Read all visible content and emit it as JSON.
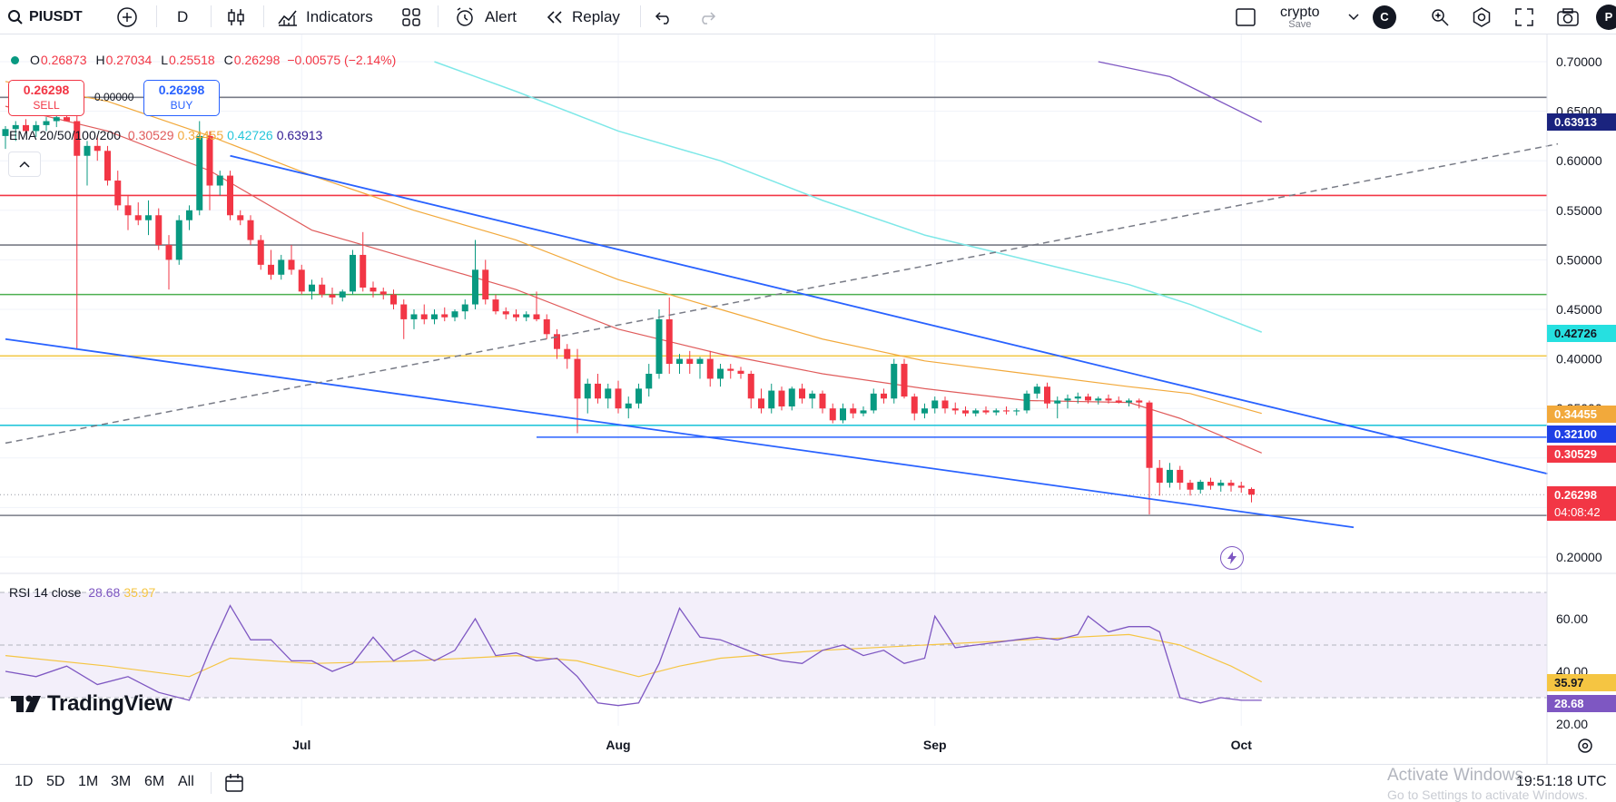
{
  "toolbar": {
    "symbol": "PIUSDT",
    "interval": "D",
    "indicators_label": "Indicators",
    "alert_label": "Alert",
    "replay_label": "Replay",
    "layout_name": "crypto",
    "layout_status": "Save",
    "avatar_letter": "C",
    "profile_letter": "P"
  },
  "legend": {
    "open_label": "O",
    "open": "0.26873",
    "high_label": "H",
    "high": "0.27034",
    "low_label": "L",
    "low": "0.25518",
    "close_label": "C",
    "close": "0.26298",
    "change": "−0.00575 (−2.14%)",
    "ema_label": "EMA 20/50/100/200",
    "ema20": "0.30529",
    "ema50": "0.34455",
    "ema100": "0.42726",
    "ema200": "0.63913",
    "rsi_label": "RSI 14 close",
    "rsi_value": "28.68",
    "rsi_ma": "35.97"
  },
  "trade": {
    "sell_price": "0.26298",
    "sell_label": "SELL",
    "spread": "0.00000",
    "buy_price": "0.26298",
    "buy_label": "BUY"
  },
  "price_tags": {
    "ema200": "0.63913",
    "ema100": "0.42726",
    "ema50": "0.34455",
    "level": "0.32100",
    "ema20": "0.30529",
    "last": "0.26298",
    "countdown": "04:08:42",
    "rsi_ma": "35.97",
    "rsi": "28.68"
  },
  "bottom": {
    "ranges": [
      "1D",
      "5D",
      "1M",
      "3M",
      "6M",
      "All"
    ],
    "clock": "19:51:18 UTC"
  },
  "watermark": {
    "line1": "Activate Windows",
    "line2": "Go to Settings to activate Windows."
  },
  "logo_text": "TradingView",
  "colors": {
    "up": "#089981",
    "down": "#f23645",
    "ema20": "#e05c5c",
    "ema50": "#f2a93b",
    "ema100": "#7ee8e8",
    "ema200": "#7e57c2",
    "trendline": "#2962ff",
    "rsi": "#7e57c2",
    "rsi_ma": "#f5c542"
  },
  "chart_data": {
    "type": "candlestick",
    "price_axis": {
      "min": 0.2,
      "max": 0.7,
      "ticks": [
        "0.70000",
        "0.65000",
        "0.60000",
        "0.55000",
        "0.50000",
        "0.45000",
        "0.40000",
        "0.35000",
        "0.20000"
      ]
    },
    "rsi_axis": {
      "ticks": [
        "60.00",
        "40.00",
        "20.00"
      ],
      "band": [
        30,
        70
      ],
      "mid": 50
    },
    "time_labels": [
      {
        "label": "Jul",
        "day": 29
      },
      {
        "label": "Aug",
        "day": 60
      },
      {
        "label": "Sep",
        "day": 91
      },
      {
        "label": "Oct",
        "day": 121
      }
    ],
    "ohlc": [
      [
        0.625,
        0.635,
        0.612,
        0.632
      ],
      [
        0.632,
        0.64,
        0.62,
        0.636
      ],
      [
        0.636,
        0.642,
        0.628,
        0.63
      ],
      [
        0.63,
        0.64,
        0.624,
        0.636
      ],
      [
        0.636,
        0.644,
        0.63,
        0.64
      ],
      [
        0.64,
        0.648,
        0.634,
        0.644
      ],
      [
        0.644,
        0.655,
        0.64,
        0.64
      ],
      [
        0.64,
        0.65,
        0.41,
        0.605
      ],
      [
        0.605,
        0.62,
        0.575,
        0.615
      ],
      [
        0.615,
        0.625,
        0.6,
        0.61
      ],
      [
        0.61,
        0.615,
        0.575,
        0.58
      ],
      [
        0.58,
        0.59,
        0.55,
        0.555
      ],
      [
        0.555,
        0.565,
        0.53,
        0.545
      ],
      [
        0.545,
        0.558,
        0.535,
        0.54
      ],
      [
        0.54,
        0.56,
        0.525,
        0.545
      ],
      [
        0.545,
        0.552,
        0.51,
        0.515
      ],
      [
        0.515,
        0.525,
        0.47,
        0.5
      ],
      [
        0.5,
        0.545,
        0.495,
        0.54
      ],
      [
        0.54,
        0.555,
        0.53,
        0.55
      ],
      [
        0.55,
        0.64,
        0.545,
        0.625
      ],
      [
        0.625,
        0.63,
        0.55,
        0.575
      ],
      [
        0.575,
        0.59,
        0.565,
        0.585
      ],
      [
        0.585,
        0.59,
        0.54,
        0.545
      ],
      [
        0.545,
        0.55,
        0.535,
        0.54
      ],
      [
        0.54,
        0.545,
        0.515,
        0.52
      ],
      [
        0.52,
        0.525,
        0.49,
        0.495
      ],
      [
        0.495,
        0.51,
        0.48,
        0.485
      ],
      [
        0.485,
        0.505,
        0.48,
        0.5
      ],
      [
        0.5,
        0.515,
        0.485,
        0.49
      ],
      [
        0.49,
        0.495,
        0.465,
        0.468
      ],
      [
        0.468,
        0.48,
        0.46,
        0.475
      ],
      [
        0.475,
        0.482,
        0.462,
        0.465
      ],
      [
        0.465,
        0.472,
        0.455,
        0.462
      ],
      [
        0.462,
        0.47,
        0.458,
        0.468
      ],
      [
        0.468,
        0.51,
        0.465,
        0.505
      ],
      [
        0.505,
        0.528,
        0.468,
        0.472
      ],
      [
        0.472,
        0.478,
        0.462,
        0.468
      ],
      [
        0.468,
        0.472,
        0.46,
        0.465
      ],
      [
        0.465,
        0.47,
        0.45,
        0.455
      ],
      [
        0.455,
        0.46,
        0.42,
        0.44
      ],
      [
        0.44,
        0.45,
        0.43,
        0.445
      ],
      [
        0.445,
        0.455,
        0.435,
        0.44
      ],
      [
        0.44,
        0.45,
        0.435,
        0.445
      ],
      [
        0.445,
        0.452,
        0.438,
        0.442
      ],
      [
        0.442,
        0.45,
        0.438,
        0.448
      ],
      [
        0.448,
        0.46,
        0.44,
        0.455
      ],
      [
        0.455,
        0.52,
        0.45,
        0.49
      ],
      [
        0.49,
        0.5,
        0.455,
        0.46
      ],
      [
        0.46,
        0.465,
        0.445,
        0.448
      ],
      [
        0.448,
        0.452,
        0.44,
        0.445
      ],
      [
        0.445,
        0.45,
        0.438,
        0.442
      ],
      [
        0.442,
        0.448,
        0.438,
        0.445
      ],
      [
        0.445,
        0.468,
        0.438,
        0.44
      ],
      [
        0.44,
        0.445,
        0.42,
        0.425
      ],
      [
        0.425,
        0.43,
        0.4,
        0.41
      ],
      [
        0.41,
        0.415,
        0.39,
        0.4
      ],
      [
        0.4,
        0.41,
        0.325,
        0.36
      ],
      [
        0.36,
        0.38,
        0.345,
        0.375
      ],
      [
        0.375,
        0.385,
        0.355,
        0.36
      ],
      [
        0.36,
        0.375,
        0.35,
        0.37
      ],
      [
        0.37,
        0.378,
        0.345,
        0.35
      ],
      [
        0.35,
        0.362,
        0.34,
        0.355
      ],
      [
        0.355,
        0.375,
        0.35,
        0.37
      ],
      [
        0.37,
        0.395,
        0.362,
        0.385
      ],
      [
        0.385,
        0.45,
        0.38,
        0.44
      ],
      [
        0.44,
        0.462,
        0.385,
        0.395
      ],
      [
        0.395,
        0.405,
        0.385,
        0.4
      ],
      [
        0.4,
        0.408,
        0.385,
        0.395
      ],
      [
        0.395,
        0.402,
        0.38,
        0.4
      ],
      [
        0.4,
        0.408,
        0.372,
        0.38
      ],
      [
        0.38,
        0.395,
        0.372,
        0.39
      ],
      [
        0.39,
        0.395,
        0.38,
        0.388
      ],
      [
        0.388,
        0.392,
        0.38,
        0.385
      ],
      [
        0.385,
        0.388,
        0.35,
        0.36
      ],
      [
        0.36,
        0.37,
        0.345,
        0.35
      ],
      [
        0.35,
        0.375,
        0.345,
        0.368
      ],
      [
        0.368,
        0.372,
        0.348,
        0.352
      ],
      [
        0.352,
        0.372,
        0.348,
        0.37
      ],
      [
        0.37,
        0.375,
        0.355,
        0.36
      ],
      [
        0.36,
        0.368,
        0.35,
        0.365
      ],
      [
        0.365,
        0.368,
        0.345,
        0.35
      ],
      [
        0.35,
        0.355,
        0.335,
        0.338
      ],
      [
        0.338,
        0.355,
        0.335,
        0.35
      ],
      [
        0.35,
        0.355,
        0.34,
        0.345
      ],
      [
        0.345,
        0.352,
        0.342,
        0.348
      ],
      [
        0.348,
        0.37,
        0.345,
        0.365
      ],
      [
        0.365,
        0.37,
        0.355,
        0.36
      ],
      [
        0.36,
        0.4,
        0.355,
        0.395
      ],
      [
        0.395,
        0.4,
        0.36,
        0.362
      ],
      [
        0.362,
        0.365,
        0.338,
        0.345
      ],
      [
        0.345,
        0.355,
        0.34,
        0.35
      ],
      [
        0.35,
        0.362,
        0.345,
        0.358
      ],
      [
        0.358,
        0.362,
        0.345,
        0.35
      ],
      [
        0.35,
        0.356,
        0.344,
        0.348
      ],
      [
        0.348,
        0.352,
        0.342,
        0.345
      ],
      [
        0.345,
        0.35,
        0.342,
        0.348
      ],
      [
        0.348,
        0.352,
        0.344,
        0.346
      ],
      [
        0.346,
        0.35,
        0.343,
        0.348
      ],
      [
        0.348,
        0.352,
        0.344,
        0.347
      ],
      [
        0.347,
        0.35,
        0.343,
        0.348
      ],
      [
        0.348,
        0.368,
        0.345,
        0.365
      ],
      [
        0.365,
        0.375,
        0.36,
        0.372
      ],
      [
        0.372,
        0.376,
        0.35,
        0.355
      ],
      [
        0.355,
        0.362,
        0.34,
        0.358
      ],
      [
        0.358,
        0.364,
        0.35,
        0.36
      ],
      [
        0.36,
        0.366,
        0.355,
        0.362
      ],
      [
        0.362,
        0.365,
        0.355,
        0.358
      ],
      [
        0.358,
        0.362,
        0.354,
        0.36
      ],
      [
        0.36,
        0.364,
        0.355,
        0.358
      ],
      [
        0.358,
        0.362,
        0.355,
        0.356
      ],
      [
        0.356,
        0.36,
        0.352,
        0.358
      ],
      [
        0.358,
        0.36,
        0.35,
        0.356
      ],
      [
        0.356,
        0.358,
        0.243,
        0.29
      ],
      [
        0.29,
        0.298,
        0.262,
        0.275
      ],
      [
        0.275,
        0.295,
        0.27,
        0.288
      ],
      [
        0.288,
        0.292,
        0.268,
        0.275
      ],
      [
        0.275,
        0.278,
        0.262,
        0.268
      ],
      [
        0.268,
        0.278,
        0.264,
        0.276
      ],
      [
        0.276,
        0.28,
        0.268,
        0.272
      ],
      [
        0.272,
        0.278,
        0.266,
        0.275
      ],
      [
        0.275,
        0.278,
        0.266,
        0.272
      ],
      [
        0.272,
        0.276,
        0.265,
        0.27
      ],
      [
        0.26873,
        0.27034,
        0.25518,
        0.26298
      ]
    ],
    "ema20": [
      [
        0,
        0.655
      ],
      [
        10,
        0.63
      ],
      [
        20,
        0.59
      ],
      [
        30,
        0.53
      ],
      [
        40,
        0.5
      ],
      [
        50,
        0.47
      ],
      [
        60,
        0.43
      ],
      [
        70,
        0.405
      ],
      [
        80,
        0.385
      ],
      [
        90,
        0.37
      ],
      [
        100,
        0.358
      ],
      [
        110,
        0.356
      ],
      [
        115,
        0.34
      ],
      [
        123,
        0.305
      ]
    ],
    "ema50": [
      [
        0,
        0.68
      ],
      [
        10,
        0.66
      ],
      [
        20,
        0.625
      ],
      [
        30,
        0.585
      ],
      [
        40,
        0.55
      ],
      [
        50,
        0.52
      ],
      [
        60,
        0.48
      ],
      [
        70,
        0.45
      ],
      [
        80,
        0.42
      ],
      [
        90,
        0.398
      ],
      [
        100,
        0.385
      ],
      [
        110,
        0.372
      ],
      [
        116,
        0.365
      ],
      [
        123,
        0.345
      ]
    ],
    "ema100": [
      [
        42,
        0.7
      ],
      [
        50,
        0.67
      ],
      [
        60,
        0.63
      ],
      [
        70,
        0.6
      ],
      [
        80,
        0.56
      ],
      [
        90,
        0.525
      ],
      [
        100,
        0.5
      ],
      [
        110,
        0.475
      ],
      [
        116,
        0.455
      ],
      [
        123,
        0.427
      ]
    ],
    "ema200": [
      [
        107,
        0.7
      ],
      [
        114,
        0.685
      ],
      [
        123,
        0.639
      ]
    ],
    "h_levels": [
      {
        "price": 0.664,
        "color": "#787b86"
      },
      {
        "price": 0.565,
        "color": "#f23645"
      },
      {
        "price": 0.515,
        "color": "#787b86"
      },
      {
        "price": 0.465,
        "color": "#4caf50"
      },
      {
        "price": 0.403,
        "color": "#f2c94c"
      },
      {
        "price": 0.333,
        "color": "#26c6da"
      },
      {
        "price": 0.321,
        "color": "#2962ff",
        "from_day": 52
      },
      {
        "price": 0.242,
        "color": "#787b86"
      }
    ],
    "trendlines": [
      {
        "from": [
          22,
          0.605
        ],
        "to": [
          151,
          0.284
        ]
      },
      {
        "from": [
          0,
          0.42
        ],
        "to": [
          132,
          0.23
        ]
      }
    ],
    "dashed_line": {
      "from": [
        0,
        0.315
      ],
      "to": [
        152,
        0.617
      ]
    },
    "rsi": [
      [
        0,
        40
      ],
      [
        3,
        38
      ],
      [
        6,
        42
      ],
      [
        9,
        35
      ],
      [
        12,
        38
      ],
      [
        15,
        32
      ],
      [
        18,
        29
      ],
      [
        20,
        48
      ],
      [
        22,
        65
      ],
      [
        24,
        52
      ],
      [
        26,
        52
      ],
      [
        28,
        44
      ],
      [
        30,
        44
      ],
      [
        32,
        40
      ],
      [
        34,
        43
      ],
      [
        36,
        53
      ],
      [
        38,
        44
      ],
      [
        40,
        48
      ],
      [
        42,
        44
      ],
      [
        44,
        48
      ],
      [
        46,
        60
      ],
      [
        48,
        46
      ],
      [
        50,
        47
      ],
      [
        52,
        44
      ],
      [
        54,
        45
      ],
      [
        56,
        38
      ],
      [
        58,
        28
      ],
      [
        60,
        27
      ],
      [
        62,
        28
      ],
      [
        64,
        43
      ],
      [
        66,
        64
      ],
      [
        68,
        53
      ],
      [
        70,
        52
      ],
      [
        72,
        49
      ],
      [
        74,
        46
      ],
      [
        76,
        44
      ],
      [
        78,
        43
      ],
      [
        80,
        48
      ],
      [
        82,
        50
      ],
      [
        84,
        46
      ],
      [
        86,
        48
      ],
      [
        88,
        43
      ],
      [
        90,
        45
      ],
      [
        91,
        61
      ],
      [
        93,
        49
      ],
      [
        95,
        50
      ],
      [
        97,
        51
      ],
      [
        99,
        52
      ],
      [
        101,
        53
      ],
      [
        103,
        52
      ],
      [
        105,
        54
      ],
      [
        106,
        61
      ],
      [
        108,
        55
      ],
      [
        110,
        57
      ],
      [
        112,
        57
      ],
      [
        113,
        55
      ],
      [
        115,
        30
      ],
      [
        117,
        28
      ],
      [
        119,
        30
      ],
      [
        121,
        29
      ],
      [
        123,
        29
      ]
    ],
    "rsi_ma": [
      [
        0,
        46
      ],
      [
        10,
        42
      ],
      [
        18,
        38
      ],
      [
        22,
        45
      ],
      [
        30,
        43
      ],
      [
        40,
        44
      ],
      [
        50,
        46
      ],
      [
        56,
        44
      ],
      [
        62,
        38
      ],
      [
        66,
        42
      ],
      [
        70,
        45
      ],
      [
        80,
        48
      ],
      [
        90,
        50
      ],
      [
        100,
        52
      ],
      [
        110,
        54
      ],
      [
        115,
        50
      ],
      [
        120,
        42
      ],
      [
        123,
        36
      ]
    ]
  }
}
